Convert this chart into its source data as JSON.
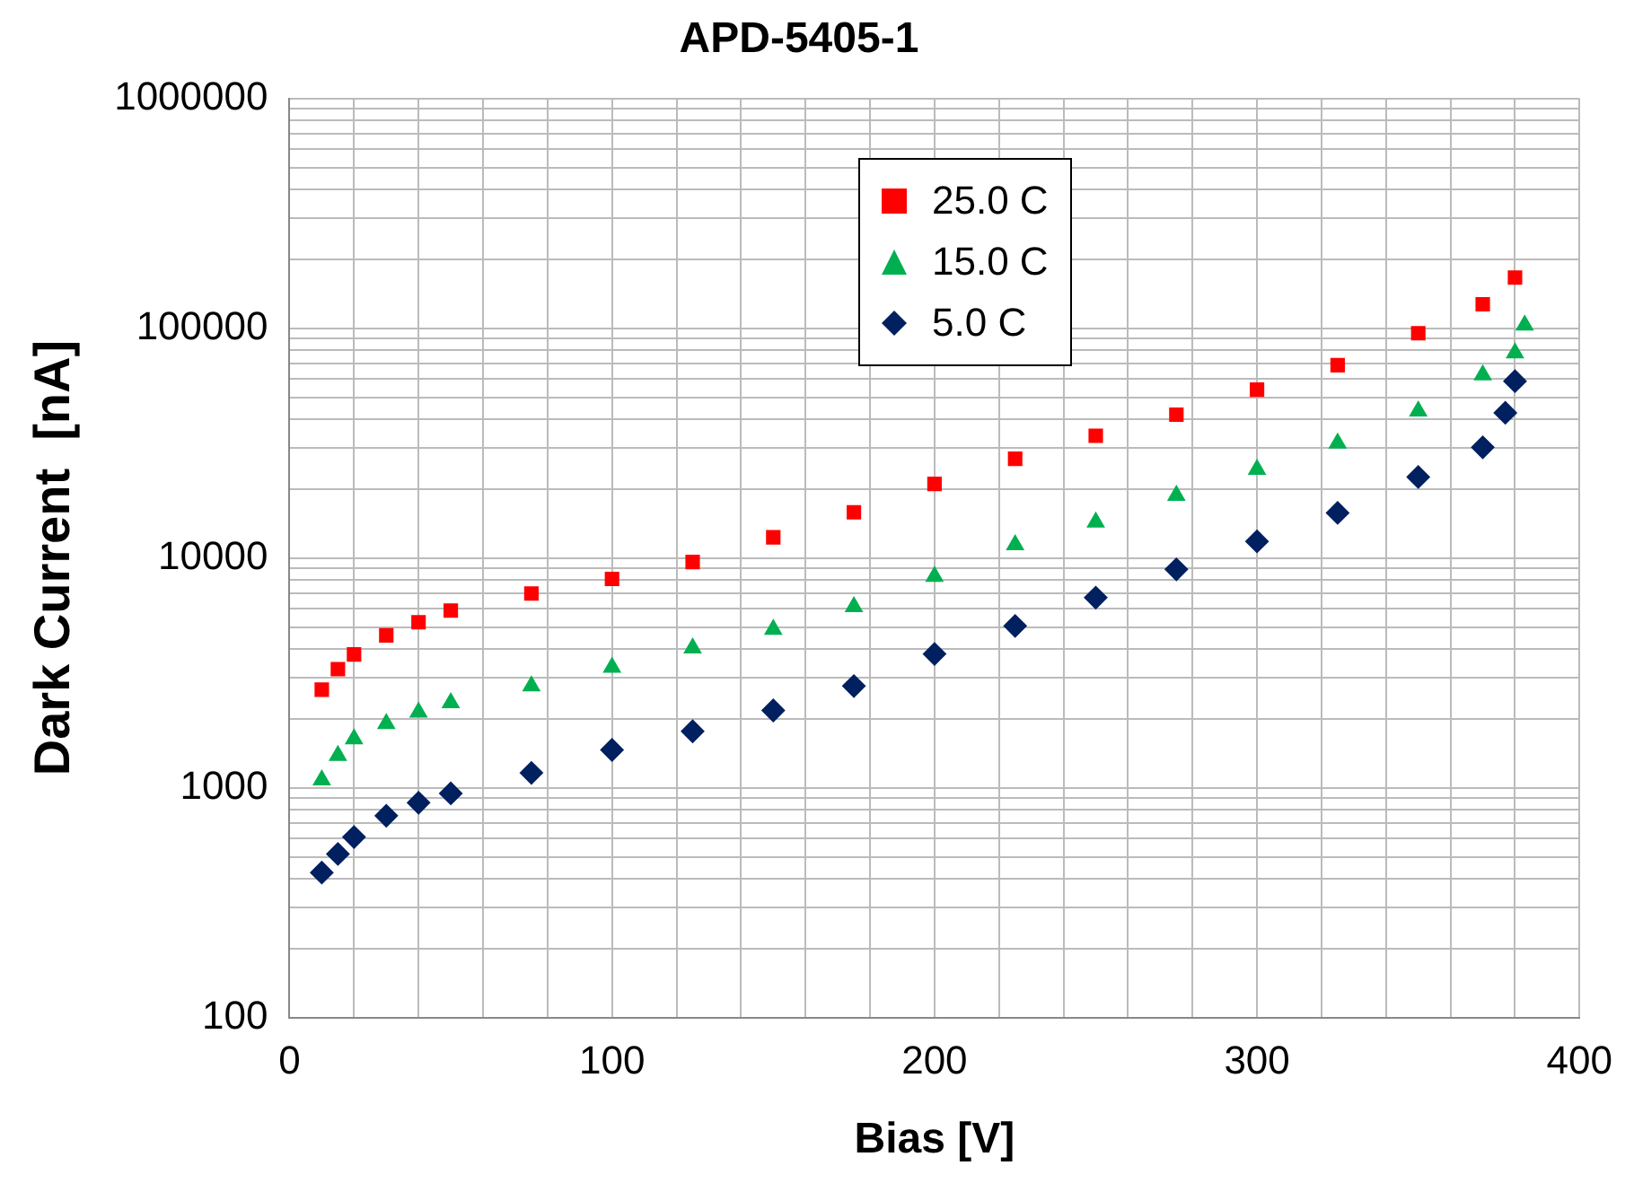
{
  "chart_data": {
    "type": "scatter",
    "title": "APD-5405-1",
    "xlabel": "Bias [V]",
    "ylabel": "Dark Current  [nA]",
    "log": "y",
    "grid": true,
    "legend": "top",
    "xlim": [
      0,
      400
    ],
    "ylim": [
      100,
      1000000
    ],
    "xticks": [
      0,
      {
        "value": 20,
        "label": null
      },
      {
        "value": 40,
        "label": null
      },
      {
        "value": 60,
        "label": null
      },
      {
        "value": 80,
        "label": null
      },
      100,
      {
        "value": 120,
        "label": null
      },
      {
        "value": 140,
        "label": null
      },
      {
        "value": 160,
        "label": null
      },
      {
        "value": 180,
        "label": null
      },
      200,
      {
        "value": 220,
        "label": null
      },
      {
        "value": 240,
        "label": null
      },
      {
        "value": 260,
        "label": null
      },
      {
        "value": 280,
        "label": null
      },
      300,
      {
        "value": 320,
        "label": null
      },
      {
        "value": 340,
        "label": null
      },
      {
        "value": 360,
        "label": null
      },
      {
        "value": 380,
        "label": null
      },
      400
    ],
    "yticks": [
      100,
      {
        "value": 200,
        "label": null
      },
      {
        "value": 300,
        "label": null
      },
      {
        "value": 400,
        "label": null
      },
      {
        "value": 500,
        "label": null
      },
      {
        "value": 600,
        "label": null
      },
      {
        "value": 700,
        "label": null
      },
      {
        "value": 800,
        "label": null
      },
      {
        "value": 900,
        "label": null
      },
      1000,
      {
        "value": 2000,
        "label": null
      },
      {
        "value": 3000,
        "label": null
      },
      {
        "value": 4000,
        "label": null
      },
      {
        "value": 5000,
        "label": null
      },
      {
        "value": 6000,
        "label": null
      },
      {
        "value": 7000,
        "label": null
      },
      {
        "value": 8000,
        "label": null
      },
      {
        "value": 9000,
        "label": null
      },
      10000,
      {
        "value": 20000,
        "label": null
      },
      {
        "value": 30000,
        "label": null
      },
      {
        "value": 40000,
        "label": null
      },
      {
        "value": 50000,
        "label": null
      },
      {
        "value": 60000,
        "label": null
      },
      {
        "value": 70000,
        "label": null
      },
      {
        "value": 80000,
        "label": null
      },
      {
        "value": 90000,
        "label": null
      },
      100000,
      {
        "value": 200000,
        "label": null
      },
      {
        "value": 300000,
        "label": null
      },
      {
        "value": 400000,
        "label": null
      },
      {
        "value": 500000,
        "label": null
      },
      {
        "value": 600000,
        "label": null
      },
      {
        "value": 700000,
        "label": null
      },
      {
        "value": 800000,
        "label": null
      },
      {
        "value": 900000,
        "label": null
      },
      1000000
    ],
    "series": [
      {
        "name": "25.0 C",
        "color": "#ff0000",
        "marker": "square",
        "x": [
          10,
          15,
          20,
          30,
          40,
          50,
          75,
          100,
          125,
          150,
          175,
          200,
          225,
          250,
          275,
          300,
          325,
          350,
          370,
          380
        ],
        "values": [
          2670,
          3280,
          3800,
          4600,
          5250,
          5900,
          7000,
          8100,
          9600,
          12300,
          15800,
          21000,
          27000,
          34000,
          42000,
          54000,
          69000,
          95000,
          127000,
          166000
        ]
      },
      {
        "name": "15.0 C",
        "color": "#00b050",
        "marker": "triangle",
        "x": [
          10,
          15,
          20,
          30,
          40,
          50,
          75,
          100,
          125,
          150,
          175,
          200,
          225,
          250,
          275,
          300,
          325,
          350,
          370,
          380,
          383
        ],
        "values": [
          1080,
          1380,
          1630,
          1900,
          2130,
          2340,
          2770,
          3340,
          4050,
          4880,
          6130,
          8300,
          11400,
          14300,
          18700,
          24300,
          31600,
          43600,
          62600,
          78000,
          103000
        ]
      },
      {
        "name": "5.0 C",
        "color": "#002060",
        "marker": "diamond",
        "x": [
          10,
          15,
          20,
          30,
          40,
          50,
          75,
          100,
          125,
          150,
          175,
          200,
          225,
          250,
          275,
          300,
          325,
          350,
          370,
          377,
          380
        ],
        "values": [
          427,
          515,
          610,
          755,
          860,
          945,
          1160,
          1460,
          1760,
          2170,
          2770,
          3820,
          5060,
          6720,
          8920,
          11800,
          15700,
          22500,
          30300,
          42800,
          58800
        ]
      }
    ]
  }
}
